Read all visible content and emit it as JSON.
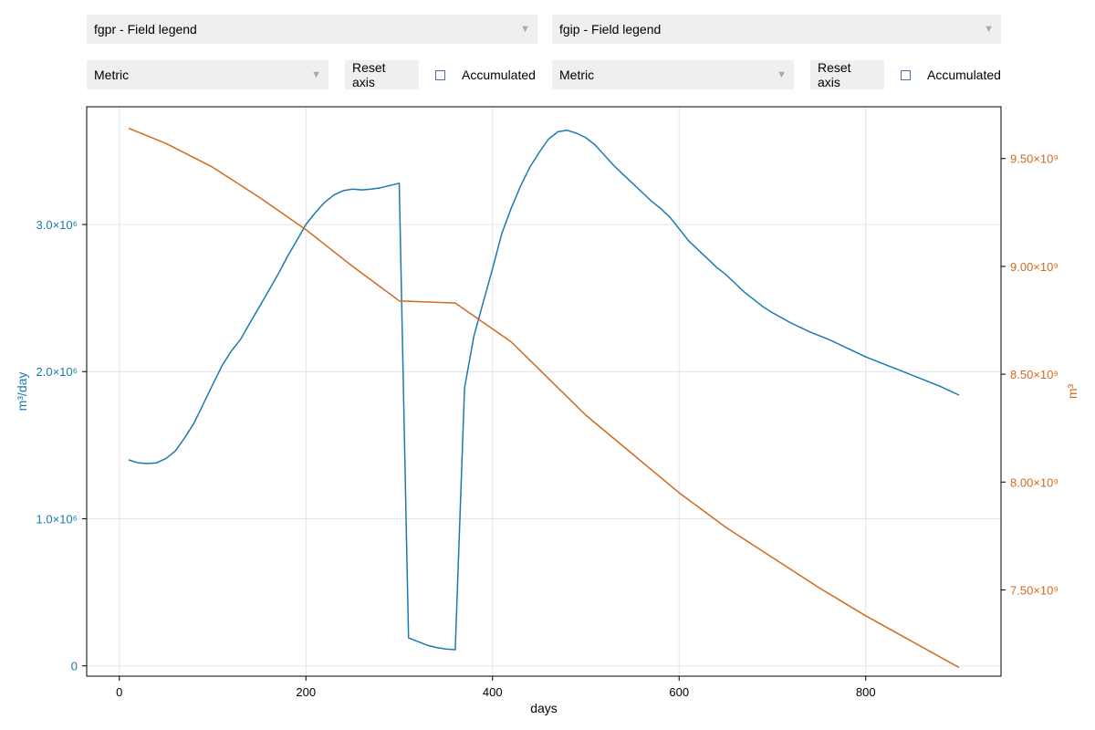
{
  "left_panel": {
    "field_select": "fgpr - Field legend",
    "units_select": "Metric",
    "reset_label": "Reset axis",
    "accumulated_label": "Accumulated"
  },
  "right_panel": {
    "field_select": "fgip - Field legend",
    "units_select": "Metric",
    "reset_label": "Reset axis",
    "accumulated_label": "Accumulated"
  },
  "colors": {
    "left": "#1a7ab0",
    "right": "#d2691e"
  },
  "chart_data": {
    "type": "line",
    "xlabel": "days",
    "xlim": [
      -35,
      945
    ],
    "xticks": [
      0,
      200,
      400,
      600,
      800
    ],
    "xtick_labels": [
      "0",
      "200",
      "400",
      "600",
      "800"
    ],
    "left_axis": {
      "label": "m³/day",
      "ylim": [
        -70000,
        3800000
      ],
      "ticks": [
        0,
        1000000,
        2000000,
        3000000
      ],
      "tick_labels": [
        "0",
        "1.0×10⁶",
        "2.0×10⁶",
        "3.0×10⁶"
      ]
    },
    "right_axis": {
      "label": "m³",
      "ylim": [
        7100000000,
        9740000000
      ],
      "ticks": [
        7500000000,
        8000000000,
        8500000000,
        9000000000,
        9500000000
      ],
      "tick_labels": [
        "7.50×10⁹",
        "8.00×10⁹",
        "8.50×10⁹",
        "9.00×10⁹",
        "9.50×10⁹"
      ]
    },
    "grid": true,
    "series": [
      {
        "axis": "left",
        "color": "#1a7ab0",
        "x": [
          10,
          20,
          30,
          40,
          50,
          60,
          70,
          80,
          90,
          100,
          110,
          120,
          130,
          140,
          150,
          160,
          170,
          180,
          190,
          200,
          210,
          220,
          230,
          240,
          250,
          260,
          270,
          280,
          290,
          300,
          310,
          320,
          330,
          340,
          350,
          360,
          370,
          380,
          390,
          400,
          410,
          420,
          430,
          440,
          450,
          460,
          470,
          480,
          490,
          500,
          510,
          520,
          530,
          540,
          550,
          560,
          570,
          580,
          590,
          600,
          610,
          620,
          630,
          640,
          650,
          660,
          670,
          680,
          690,
          700,
          720,
          740,
          760,
          780,
          800,
          820,
          840,
          860,
          880,
          900
        ],
        "y": [
          1400000,
          1380000,
          1375000,
          1380000,
          1410000,
          1460000,
          1550000,
          1650000,
          1780000,
          1910000,
          2040000,
          2140000,
          2220000,
          2330000,
          2440000,
          2550000,
          2660000,
          2780000,
          2890000,
          3000000,
          3080000,
          3150000,
          3200000,
          3230000,
          3240000,
          3235000,
          3240000,
          3250000,
          3265000,
          3280000,
          190000,
          165000,
          140000,
          125000,
          115000,
          110000,
          1890000,
          2240000,
          2470000,
          2700000,
          2940000,
          3110000,
          3260000,
          3390000,
          3490000,
          3580000,
          3630000,
          3640000,
          3620000,
          3590000,
          3540000,
          3470000,
          3400000,
          3340000,
          3280000,
          3220000,
          3160000,
          3110000,
          3050000,
          2970000,
          2890000,
          2830000,
          2770000,
          2710000,
          2660000,
          2600000,
          2540000,
          2490000,
          2440000,
          2400000,
          2330000,
          2270000,
          2220000,
          2160000,
          2100000,
          2050000,
          2000000,
          1950000,
          1900000,
          1840000
        ]
      },
      {
        "axis": "right",
        "color": "#d2691e",
        "x": [
          10,
          50,
          100,
          150,
          200,
          250,
          300,
          360,
          380,
          420,
          460,
          500,
          550,
          600,
          650,
          700,
          750,
          800,
          850,
          900
        ],
        "y": [
          9640000000,
          9570000000,
          9460000000,
          9320000000,
          9170000000,
          9000000000,
          8840000000,
          8830000000,
          8770000000,
          8650000000,
          8480000000,
          8310000000,
          8130000000,
          7950000000,
          7790000000,
          7650000000,
          7510000000,
          7380000000,
          7260000000,
          7140000000
        ]
      }
    ]
  }
}
